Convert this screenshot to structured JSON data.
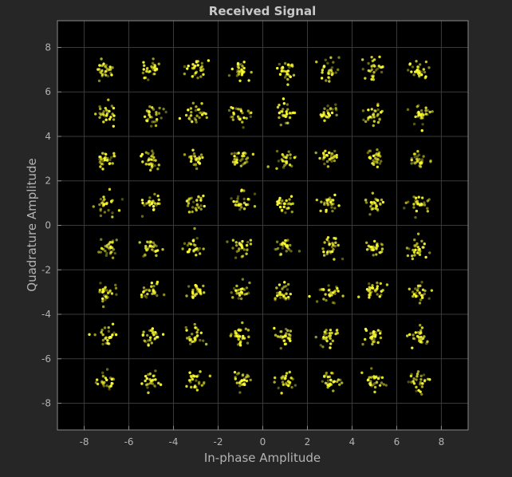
{
  "chart_data": {
    "type": "scatter",
    "title": "Received Signal",
    "xlabel": "In-phase Amplitude",
    "ylabel": "Quadrature Amplitude",
    "xlim": [
      -9.2,
      9.2
    ],
    "ylim": [
      -9.2,
      9.2
    ],
    "xticks": [
      -8,
      -6,
      -4,
      -2,
      0,
      2,
      4,
      6,
      8
    ],
    "yticks": [
      8,
      6,
      4,
      2,
      0,
      -2,
      -4,
      -6,
      -8
    ],
    "grid": true,
    "constellation": "64-QAM",
    "ideal_levels": [
      -7,
      -5,
      -3,
      -1,
      1,
      3,
      5,
      7
    ],
    "noise_sigma": 0.22,
    "points_per_symbol": 28,
    "colors": {
      "figure_background": "#262626",
      "axes_background": "#000000",
      "grid": "#3a3a3a",
      "axes_box": "#8a8a8a",
      "text": "#b3b3b3",
      "title": "#c8c8c8",
      "marker": "#ffff33"
    }
  }
}
